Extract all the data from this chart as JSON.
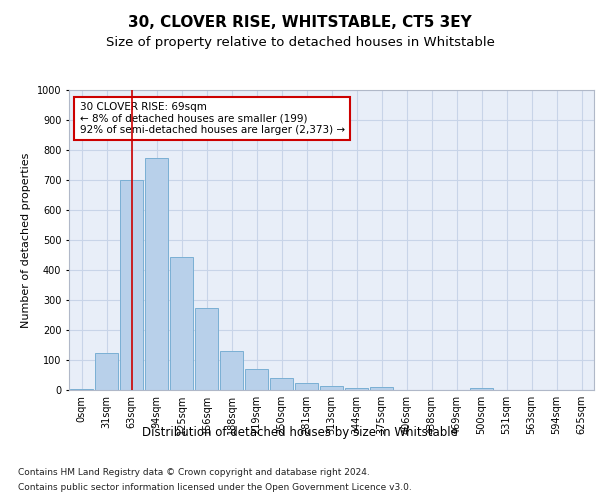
{
  "title1": "30, CLOVER RISE, WHITSTABLE, CT5 3EY",
  "title2": "Size of property relative to detached houses in Whitstable",
  "xlabel": "Distribution of detached houses by size in Whitstable",
  "ylabel": "Number of detached properties",
  "bar_labels": [
    "0sqm",
    "31sqm",
    "63sqm",
    "94sqm",
    "125sqm",
    "156sqm",
    "188sqm",
    "219sqm",
    "250sqm",
    "281sqm",
    "313sqm",
    "344sqm",
    "375sqm",
    "406sqm",
    "438sqm",
    "469sqm",
    "500sqm",
    "531sqm",
    "563sqm",
    "594sqm",
    "625sqm"
  ],
  "bar_values": [
    5,
    125,
    700,
    775,
    443,
    275,
    130,
    70,
    40,
    22,
    14,
    8,
    10,
    0,
    0,
    0,
    8,
    0,
    0,
    0,
    0
  ],
  "bar_color": "#b8d0ea",
  "bar_edge_color": "#7aafd4",
  "grid_color": "#c8d4e8",
  "bg_color": "#e8eef8",
  "ylim": [
    0,
    1000
  ],
  "yticks": [
    0,
    100,
    200,
    300,
    400,
    500,
    600,
    700,
    800,
    900,
    1000
  ],
  "vline_x_index": 2,
  "vline_color": "#cc0000",
  "annotation_text": "30 CLOVER RISE: 69sqm\n← 8% of detached houses are smaller (199)\n92% of semi-detached houses are larger (2,373) →",
  "annotation_box_color": "#ffffff",
  "annotation_border_color": "#cc0000",
  "footer1": "Contains HM Land Registry data © Crown copyright and database right 2024.",
  "footer2": "Contains public sector information licensed under the Open Government Licence v3.0.",
  "title1_fontsize": 11,
  "title2_fontsize": 9.5,
  "xlabel_fontsize": 8.5,
  "ylabel_fontsize": 8,
  "tick_fontsize": 7,
  "annot_fontsize": 7.5,
  "footer_fontsize": 6.5
}
